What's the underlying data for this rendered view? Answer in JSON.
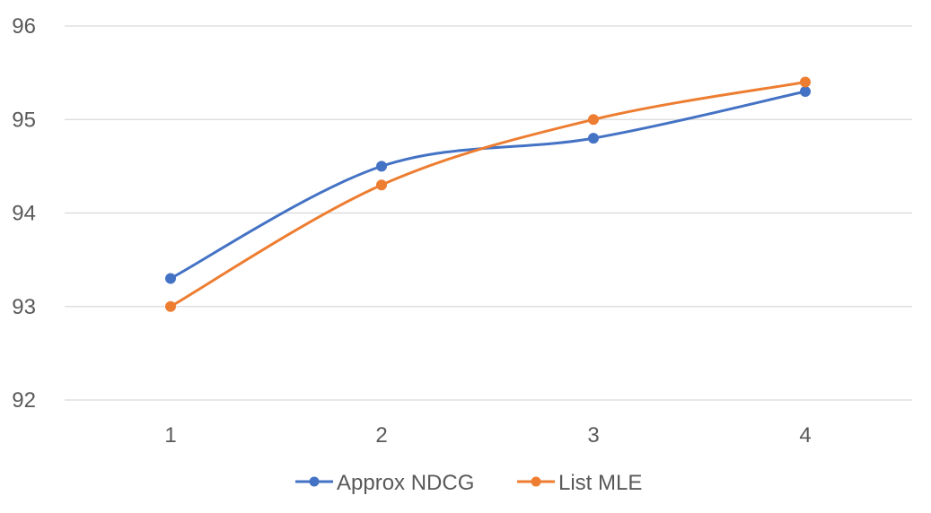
{
  "chart_data": {
    "type": "line",
    "title": "",
    "xlabel": "",
    "ylabel": "",
    "categories": [
      "1",
      "2",
      "3",
      "4"
    ],
    "x": [
      1,
      2,
      3,
      4
    ],
    "ylim": [
      92,
      96
    ],
    "yticks": [
      92,
      93,
      94,
      95,
      96
    ],
    "grid": true,
    "smooth": true,
    "legend_position": "bottom",
    "series": [
      {
        "name": "Approx NDCG",
        "color": "#4472c4",
        "values": [
          93.3,
          94.5,
          94.8,
          95.3
        ]
      },
      {
        "name": "List MLE",
        "color": "#ed7d31",
        "values": [
          93.0,
          94.3,
          95.0,
          95.4
        ]
      }
    ]
  }
}
